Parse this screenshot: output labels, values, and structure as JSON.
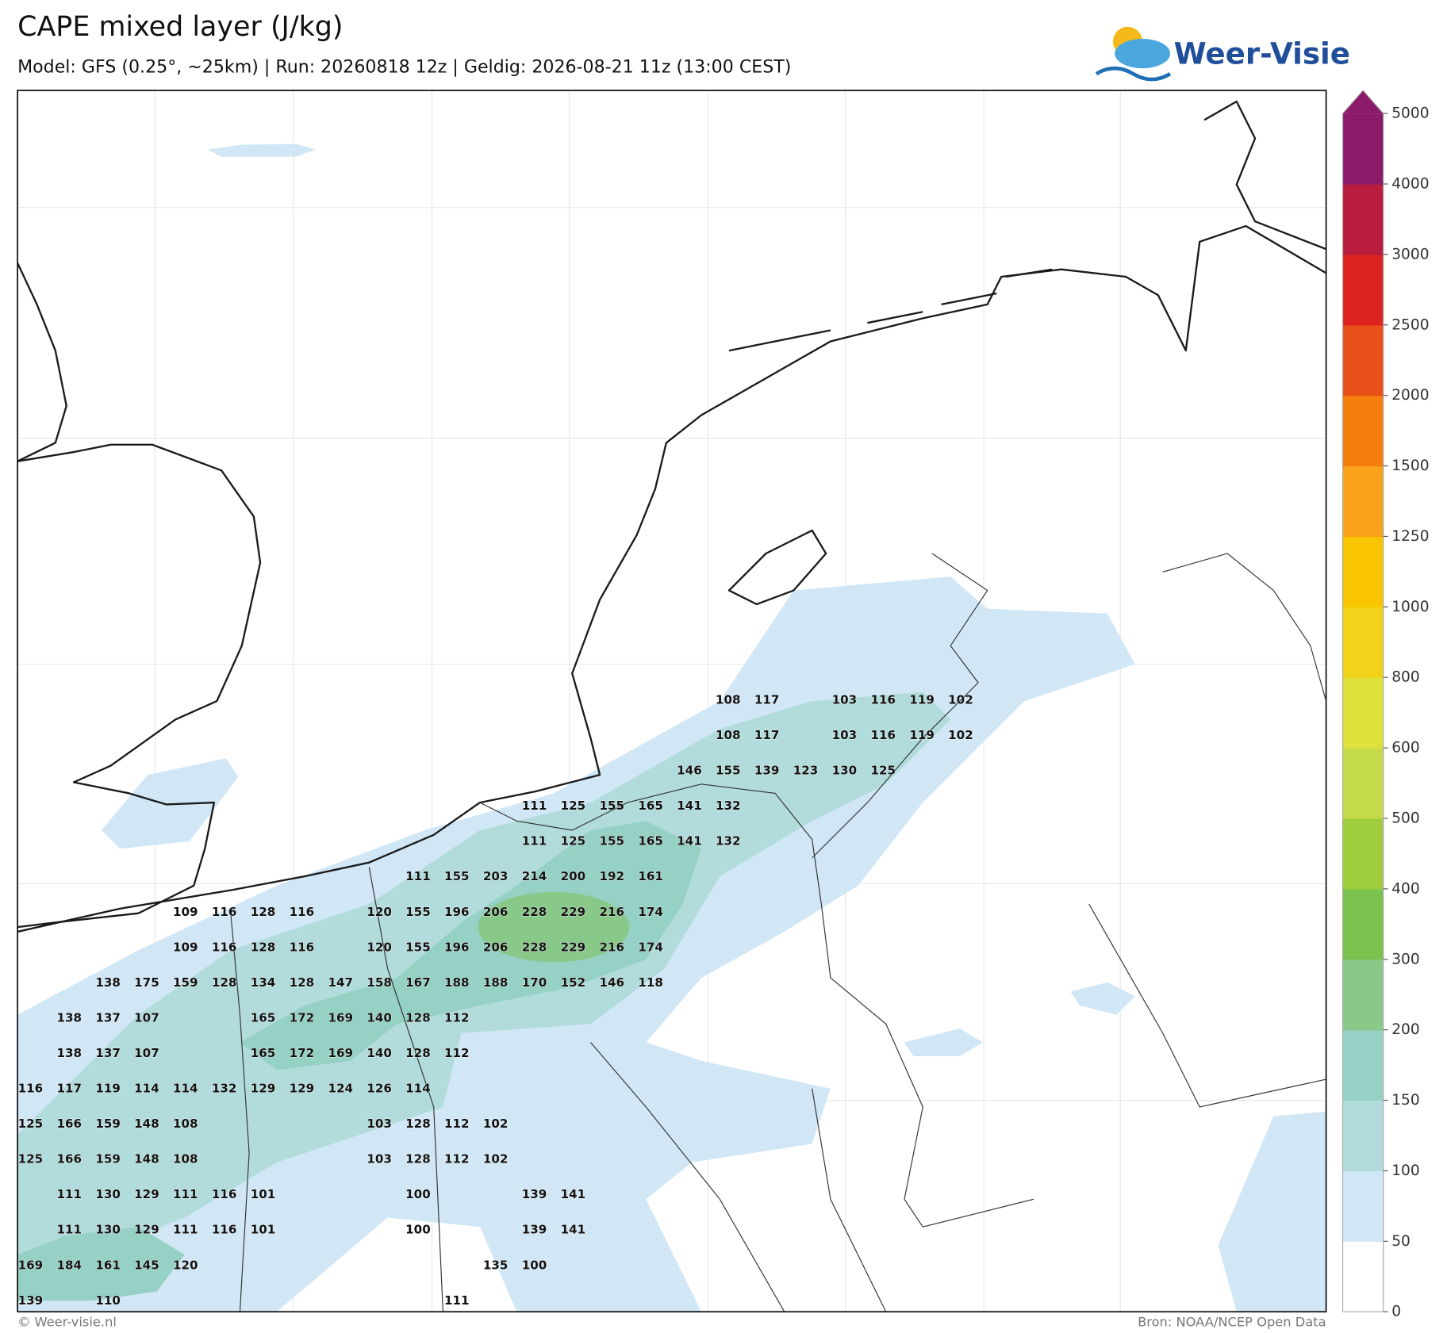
{
  "header": {
    "title": "CAPE mixed layer (J/kg)",
    "subtitle": "Model: GFS (0.25°, ~25km)  |  Run: 20260818 12z  |  Geldig: 2026-08-21 11z (13:00 CEST)",
    "logo": "Weer-Visie"
  },
  "footer": {
    "left": "© Weer-visie.nl",
    "right": "Bron: NOAA/NCEP Open Data"
  },
  "colorbar": {
    "ticks": [
      0,
      50,
      100,
      150,
      200,
      300,
      400,
      500,
      600,
      800,
      1000,
      1250,
      1500,
      2000,
      2500,
      3000,
      4000,
      5000
    ],
    "colors": [
      "#ffffff",
      "#d1e7f6",
      "#b2dcdc",
      "#95d1c4",
      "#88c98a",
      "#7bc24e",
      "#9fcd3d",
      "#c4da4b",
      "#dee03b",
      "#f2d319",
      "#f9c400",
      "#faa21c",
      "#f57f0c",
      "#e8501a",
      "#dc2320",
      "#b81d3e",
      "#8c1a6a"
    ],
    "over_color": "#8c1a6a"
  },
  "point_values": {
    "rows": [
      [
        null,
        null,
        null,
        null,
        null,
        null,
        null,
        null,
        null,
        null,
        null,
        null,
        null,
        null,
        null,
        null,
        null,
        null,
        108,
        117,
        null,
        103,
        116,
        119,
        102
      ],
      [
        null,
        null,
        null,
        null,
        null,
        null,
        null,
        null,
        null,
        null,
        null,
        null,
        null,
        null,
        null,
        null,
        null,
        null,
        108,
        117,
        null,
        103,
        116,
        119,
        102
      ],
      [
        null,
        null,
        null,
        null,
        null,
        null,
        null,
        null,
        null,
        null,
        null,
        null,
        null,
        null,
        null,
        null,
        null,
        146,
        155,
        139,
        123,
        130,
        125
      ],
      [
        null,
        null,
        null,
        null,
        null,
        null,
        null,
        null,
        null,
        null,
        null,
        null,
        null,
        111,
        125,
        155,
        165,
        141,
        132
      ],
      [
        null,
        null,
        null,
        null,
        null,
        null,
        null,
        null,
        null,
        null,
        null,
        null,
        null,
        111,
        125,
        155,
        165,
        141,
        132
      ],
      [
        null,
        null,
        null,
        null,
        null,
        null,
        null,
        null,
        null,
        null,
        111,
        155,
        203,
        214,
        200,
        192,
        161
      ],
      [
        null,
        null,
        null,
        null,
        109,
        116,
        128,
        116,
        null,
        120,
        155,
        196,
        206,
        228,
        229,
        216,
        174
      ],
      [
        null,
        null,
        null,
        null,
        109,
        116,
        128,
        116,
        null,
        120,
        155,
        196,
        206,
        228,
        229,
        216,
        174
      ],
      [
        null,
        null,
        138,
        175,
        159,
        128,
        134,
        128,
        147,
        158,
        167,
        188,
        188,
        170,
        152,
        146,
        118
      ],
      [
        null,
        138,
        137,
        107,
        null,
        null,
        165,
        172,
        169,
        140,
        128,
        112
      ],
      [
        null,
        138,
        137,
        107,
        null,
        null,
        165,
        172,
        169,
        140,
        128,
        112
      ],
      [
        116,
        117,
        119,
        114,
        114,
        132,
        129,
        129,
        124,
        126,
        114
      ],
      [
        125,
        166,
        159,
        148,
        108,
        null,
        null,
        null,
        null,
        103,
        128,
        112,
        102
      ],
      [
        125,
        166,
        159,
        148,
        108,
        null,
        null,
        null,
        null,
        103,
        128,
        112,
        102
      ],
      [
        null,
        111,
        130,
        129,
        111,
        116,
        101,
        null,
        null,
        null,
        100,
        null,
        null,
        139,
        141
      ],
      [
        null,
        111,
        130,
        129,
        111,
        116,
        101,
        null,
        null,
        null,
        100,
        null,
        null,
        139,
        141
      ],
      [
        169,
        184,
        161,
        145,
        120,
        null,
        null,
        null,
        null,
        null,
        null,
        null,
        135,
        100
      ],
      [
        139,
        null,
        110,
        null,
        null,
        null,
        null,
        null,
        null,
        null,
        null,
        111
      ]
    ]
  }
}
